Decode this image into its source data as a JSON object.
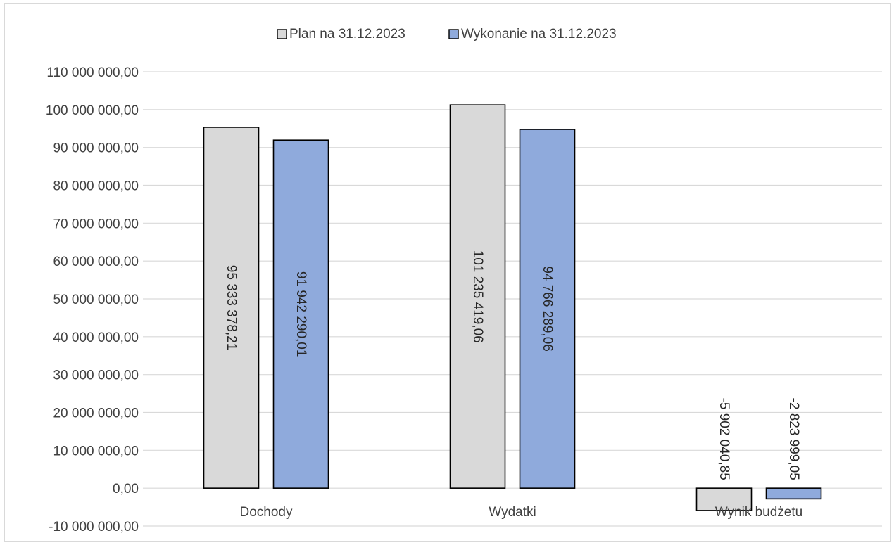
{
  "chart_data": {
    "type": "bar",
    "categories": [
      "Dochody",
      "Wydatki",
      "Wynik budżetu"
    ],
    "series": [
      {
        "name": "Plan na 31.12.2023",
        "color": "#d9d9d9",
        "values": [
          95333378.21,
          101235419.06,
          -5902040.85
        ],
        "labels": [
          "95 333 378,21",
          "101 235 419,06",
          "-5 902 040,85"
        ]
      },
      {
        "name": "Wykonanie na 31.12.2023",
        "color": "#8faadc",
        "values": [
          91942290.01,
          94766289.06,
          -2823999.05
        ],
        "labels": [
          "91 942 290,01",
          "94 766 289,06",
          "-2 823 999,05"
        ]
      }
    ],
    "ylim": [
      -10000000,
      110000000
    ],
    "yticks": [
      {
        "value": 110000000,
        "label": "110 000 000,00"
      },
      {
        "value": 100000000,
        "label": "100 000 000,00"
      },
      {
        "value": 90000000,
        "label": "90 000 000,00"
      },
      {
        "value": 80000000,
        "label": "80 000 000,00"
      },
      {
        "value": 70000000,
        "label": "70 000 000,00"
      },
      {
        "value": 60000000,
        "label": "60 000 000,00"
      },
      {
        "value": 50000000,
        "label": "50 000 000,00"
      },
      {
        "value": 40000000,
        "label": "40 000 000,00"
      },
      {
        "value": 30000000,
        "label": "30 000 000,00"
      },
      {
        "value": 20000000,
        "label": "20 000 000,00"
      },
      {
        "value": 10000000,
        "label": "10 000 000,00"
      },
      {
        "value": 0,
        "label": "0,00"
      },
      {
        "value": -10000000,
        "label": "-10 000 000,00"
      }
    ],
    "grid": true,
    "legend": "top-center",
    "title": "",
    "xlabel": "",
    "ylabel": ""
  }
}
